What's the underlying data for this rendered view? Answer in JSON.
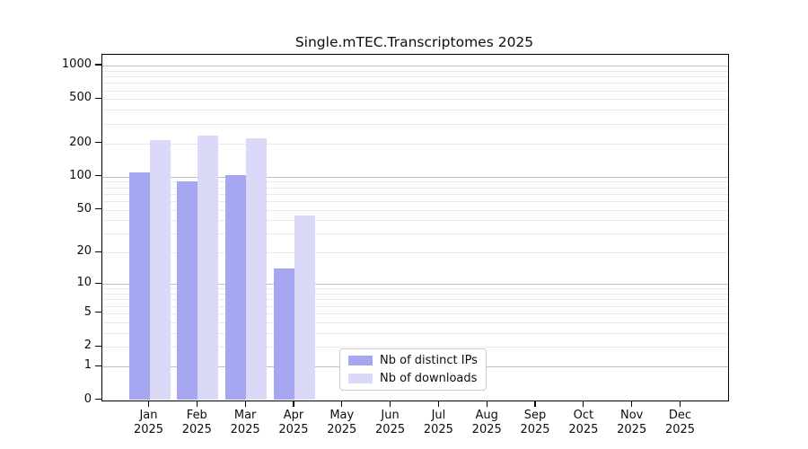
{
  "title": "Single.mTEC.Transcriptomes 2025",
  "chart_data": {
    "type": "bar",
    "title": "Single.mTEC.Transcriptomes 2025",
    "categories": [
      "Jan 2025",
      "Feb 2025",
      "Mar 2025",
      "Apr 2025",
      "May 2025",
      "Jun 2025",
      "Jul 2025",
      "Aug 2025",
      "Sep 2025",
      "Oct 2025",
      "Nov 2025",
      "Dec 2025"
    ],
    "series": [
      {
        "name": "Nb of distinct IPs",
        "color": "#a6a6f1",
        "values": [
          110,
          90,
          103,
          14,
          0,
          0,
          0,
          0,
          0,
          0,
          0,
          0
        ]
      },
      {
        "name": "Nb of downloads",
        "color": "#dadaf8",
        "values": [
          212,
          234,
          220,
          44,
          0,
          0,
          0,
          0,
          0,
          0,
          0,
          0
        ]
      }
    ],
    "xlabel": "",
    "ylabel": "",
    "y_axis": {
      "scale": "symlog position proportional to log10(1+x)",
      "ticks": [
        0,
        1,
        2,
        5,
        10,
        20,
        50,
        100,
        200,
        500,
        1000
      ],
      "major_grid": [
        1,
        10,
        100,
        1000
      ],
      "minor_grid_decades": [
        1,
        10,
        100
      ],
      "range": [
        0,
        1280
      ]
    },
    "grid": "horizontal only",
    "legend_position": "inside plot, lower center-left"
  },
  "colors": {
    "bar_distinct_ips": "#a6a6f1",
    "bar_downloads": "#dadaf8",
    "grid_major": "#c0c0c0",
    "grid_minor": "#eaeaea",
    "axis": "#000000",
    "background": "#ffffff",
    "legend_border": "#cccccc"
  }
}
